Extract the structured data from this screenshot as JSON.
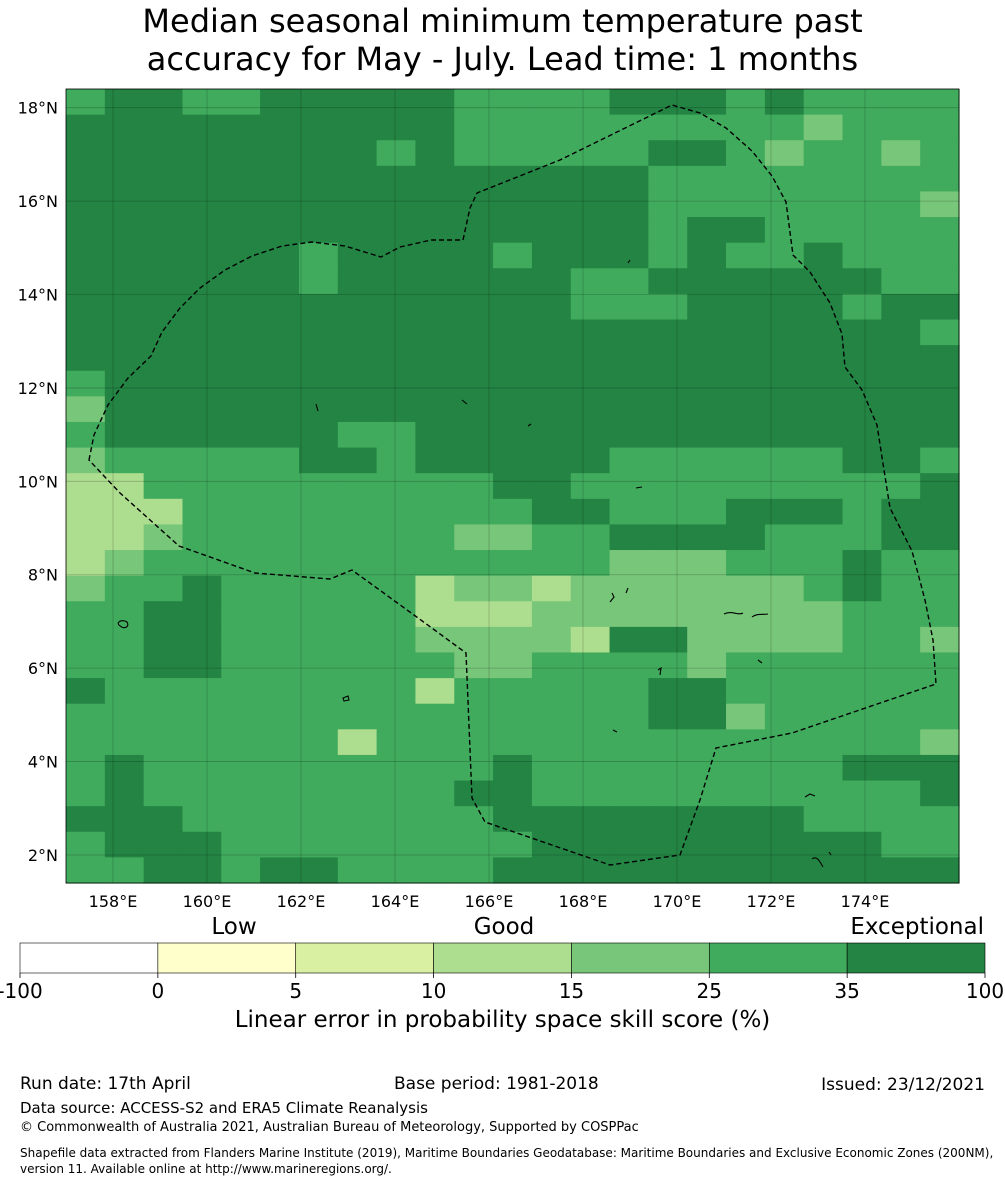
{
  "title": {
    "line1": "Median seasonal minimum temperature past",
    "line2": "accuracy for May - July. Lead time: 1 months"
  },
  "map": {
    "lon_range": [
      157,
      176
    ],
    "lat_range": [
      1.4,
      18.4
    ],
    "cell_size_deg": 0.83,
    "lon_ticks": [
      "158°E",
      "160°E",
      "162°E",
      "164°E",
      "166°E",
      "168°E",
      "170°E",
      "172°E",
      "174°E"
    ],
    "lat_ticks": [
      "18°N",
      "16°N",
      "14°N",
      "12°N",
      "10°N",
      "8°N",
      "6°N",
      "4°N",
      "2°N"
    ],
    "colors": {
      "class_25_35": "#41ab5d",
      "class_35_100": "#238443",
      "class_15_25": "#78c679",
      "class_10_15": "#addd8e",
      "class_5_10": "#d9f0a3",
      "class_0_5": "#ffffcc",
      "class_neg": "#ffffff",
      "boundary": "#000000"
    },
    "grid_legend": "0=25-35, 1=35-100, 2=15-25, 3=10-15"
  },
  "colorbar": {
    "category_labels": [
      "Low",
      "Good",
      "Exceptional"
    ],
    "tick_labels": [
      "-100",
      "0",
      "5",
      "10",
      "15",
      "25",
      "35",
      "100"
    ],
    "bin_colors": [
      "#ffffff",
      "#ffffcc",
      "#d9f0a3",
      "#addd8e",
      "#78c679",
      "#41ab5d",
      "#238443"
    ],
    "label": "Linear error in probability space skill score (%)"
  },
  "footer": {
    "run_date": "Run date: 17th April",
    "base_period": "Base period: 1981-2018",
    "issued": "Issued: 23/12/2021",
    "data_source": "Data source: ACCESS-S2 and ERA5 Climate Reanalysis",
    "copyright": "© Commonwealth of Australia 2021, Australian Bureau of Meteorology, Supported by COSPPac",
    "shapefile": "Shapefile data extracted from Flanders Marine Institute (2019), Maritime Boundaries Geodatabase: Maritime Boundaries and Exclusive Economic Zones (200NM), version 11. Available online at http://www.marineregions.org/."
  }
}
